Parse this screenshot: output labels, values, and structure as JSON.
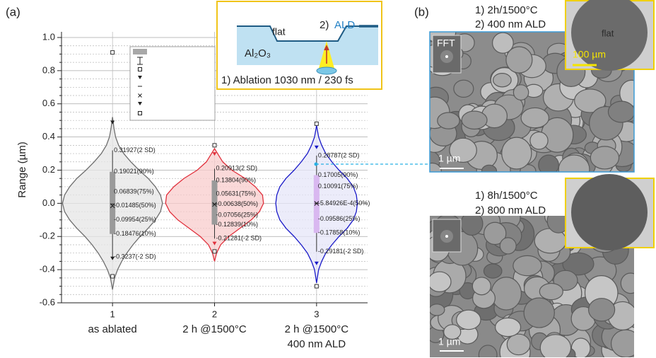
{
  "panel_labels": [
    "(a)",
    "(b)"
  ],
  "chart_data": {
    "type": "violin",
    "y_label": "Range (µm)",
    "categories": [
      "1",
      "2",
      "3"
    ],
    "category_descriptions": [
      [
        "as ablated"
      ],
      [
        "2 h @1500°C"
      ],
      [
        "2 h @1500°C",
        "400 nm ALD"
      ]
    ],
    "ylim": [
      -0.6,
      1.0
    ],
    "yticks": [
      -0.6,
      -0.4,
      -0.2,
      {
        "value": 0,
        "label": "0.0"
      },
      0.2,
      0.4,
      0.6,
      0.8,
      {
        "value": 1,
        "label": "1.0"
      }
    ],
    "minor_yticks": [
      -0.55,
      -0.5,
      -0.45,
      -0.35,
      -0.3,
      -0.25,
      -0.15,
      -0.1,
      -0.05,
      0.05,
      0.1,
      0.15,
      0.25,
      0.3,
      0.35,
      0.45,
      0.5,
      0.55,
      0.65,
      0.7,
      0.75,
      0.85,
      0.9,
      0.95
    ],
    "grid": true,
    "legend": {
      "entries": [
        "10%~90%",
        "Mean ± 2 SD",
        "Max",
        "99%",
        "Mean",
        "Median",
        "1%",
        "Min"
      ]
    },
    "series": [
      {
        "color": "#6e6e6e",
        "fill": "#e6e6e6",
        "box_color": "#9a9a9a",
        "values": [
          0.31927,
          0.19021,
          0.06839,
          -0.01485,
          -0.09954,
          -0.18476,
          -0.3237
        ],
        "value_labels": [
          "0.31927(2 SD)",
          "0.19021(90%)",
          "0.06839(75%)",
          "-0.01485(50%)",
          "-0.09954(25%)",
          "-0.18476(10%)",
          "-0.3237(-2 SD)"
        ],
        "max": 0.91,
        "p99": 0.49,
        "mean": -0.004,
        "p1": -0.33,
        "min": -0.44,
        "density_y": [
          -0.52,
          -0.45,
          -0.4,
          -0.35,
          -0.3,
          -0.25,
          -0.2,
          -0.15,
          -0.1,
          -0.05,
          0,
          0.05,
          0.1,
          0.15,
          0.2,
          0.25,
          0.3,
          0.35,
          0.4,
          0.45,
          0.52
        ],
        "density": [
          0,
          0.02,
          0.05,
          0.09,
          0.14,
          0.2,
          0.27,
          0.35,
          0.42,
          0.47,
          0.49,
          0.47,
          0.42,
          0.35,
          0.26,
          0.18,
          0.11,
          0.06,
          0.03,
          0.015,
          0
        ]
      },
      {
        "color": "#e0303c",
        "fill": "#f8cccc",
        "box_color": "#9a9a9a",
        "values": [
          0.20913,
          0.13804,
          0.05631,
          -0.00638,
          -0.07056,
          -0.12839,
          -0.21281
        ],
        "value_labels": [
          "0.20913(2 SD)",
          "0.13804(90%)",
          "0.05631(75%)",
          "-0.00638(50%)",
          "-0.07056(25%)",
          "-0.12839(10%)",
          "-0.21281(-2 SD)"
        ],
        "max": 0.35,
        "p99": 0.3,
        "mean": -0.004,
        "p1": -0.24,
        "min": -0.29,
        "density_y": [
          -0.35,
          -0.3,
          -0.25,
          -0.2,
          -0.15,
          -0.1,
          -0.05,
          0,
          0.05,
          0.1,
          0.15,
          0.2,
          0.25,
          0.3,
          0.33
        ],
        "density": [
          0,
          0.02,
          0.06,
          0.14,
          0.25,
          0.36,
          0.44,
          0.48,
          0.47,
          0.4,
          0.3,
          0.17,
          0.08,
          0.03,
          0
        ]
      },
      {
        "color": "#1a1ac8",
        "fill": "#e6e6f8",
        "box_color": "#d9b8f0",
        "values": [
          0.28787,
          0.17005,
          0.10091,
          -0.000584926,
          -0.09586,
          -0.17858,
          -0.29181
        ],
        "value_labels": [
          "0.28787(2 SD)",
          "0.17005(90%)",
          "0.10091(75%)",
          "-5.84926E-4(50%)",
          "-0.09586(25%)",
          "-0.17858(10%)",
          "-0.29181(-2 SD)"
        ],
        "max": 0.48,
        "p99": 0.34,
        "mean": 0,
        "p1": -0.36,
        "min": -0.5,
        "density_y": [
          -0.48,
          -0.4,
          -0.35,
          -0.3,
          -0.25,
          -0.2,
          -0.15,
          -0.1,
          -0.05,
          0,
          0.05,
          0.1,
          0.15,
          0.2,
          0.25,
          0.3,
          0.35,
          0.4,
          0.47
        ],
        "density": [
          0,
          0.02,
          0.05,
          0.09,
          0.15,
          0.22,
          0.3,
          0.36,
          0.39,
          0.4,
          0.39,
          0.36,
          0.3,
          0.22,
          0.15,
          0.09,
          0.05,
          0.02,
          0
        ]
      }
    ]
  },
  "inset": {
    "flat": "flat",
    "ald_step": "2)",
    "ald": "ALD",
    "material": "Al₂O₃",
    "ablation": "1) Ablation 1030 nm / 230 fs"
  },
  "panel_b": {
    "top": {
      "step1": "1) 2h/1500°C",
      "step2": "2) 400 nm ALD",
      "fft": "FFT",
      "flat": "flat",
      "inset_scale": "100 µm",
      "scale": "1 µm"
    },
    "bottom": {
      "step1": "1) 8h/1500°C",
      "step2": "2) 800 nm ALD",
      "scale": "1 µm"
    }
  }
}
